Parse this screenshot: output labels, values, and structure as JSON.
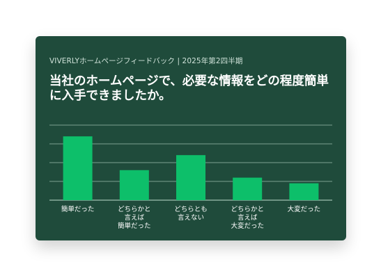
{
  "card": {
    "subtitle": "VIVERLYホームページフィードバック | 2025年第2四半期",
    "title": "当社のホームページで、必要な情報をどの程度簡単に入手できましたか。"
  },
  "colors": {
    "background": "#1f4b3b",
    "bar": "#0dbf6a",
    "gridline": "#9fbfb0",
    "text": "#ffffff"
  },
  "chart_data": {
    "type": "bar",
    "title": "当社のホームページで、必要な情報をどの程度簡単に入手できましたか。",
    "subtitle": "VIVERLYホームページフィードバック | 2025年第2四半期",
    "categories": [
      [
        "簡単だった"
      ],
      [
        "どちらかと",
        "言えば",
        "簡単だった"
      ],
      [
        "どちらとも",
        "言えない"
      ],
      [
        "どちらかと",
        "言えば",
        "大変だった"
      ],
      [
        "大変だった"
      ]
    ],
    "values": [
      34,
      16,
      24,
      12,
      9
    ],
    "ylim": [
      0,
      40
    ],
    "grid": true,
    "xlabel": "",
    "ylabel": ""
  }
}
